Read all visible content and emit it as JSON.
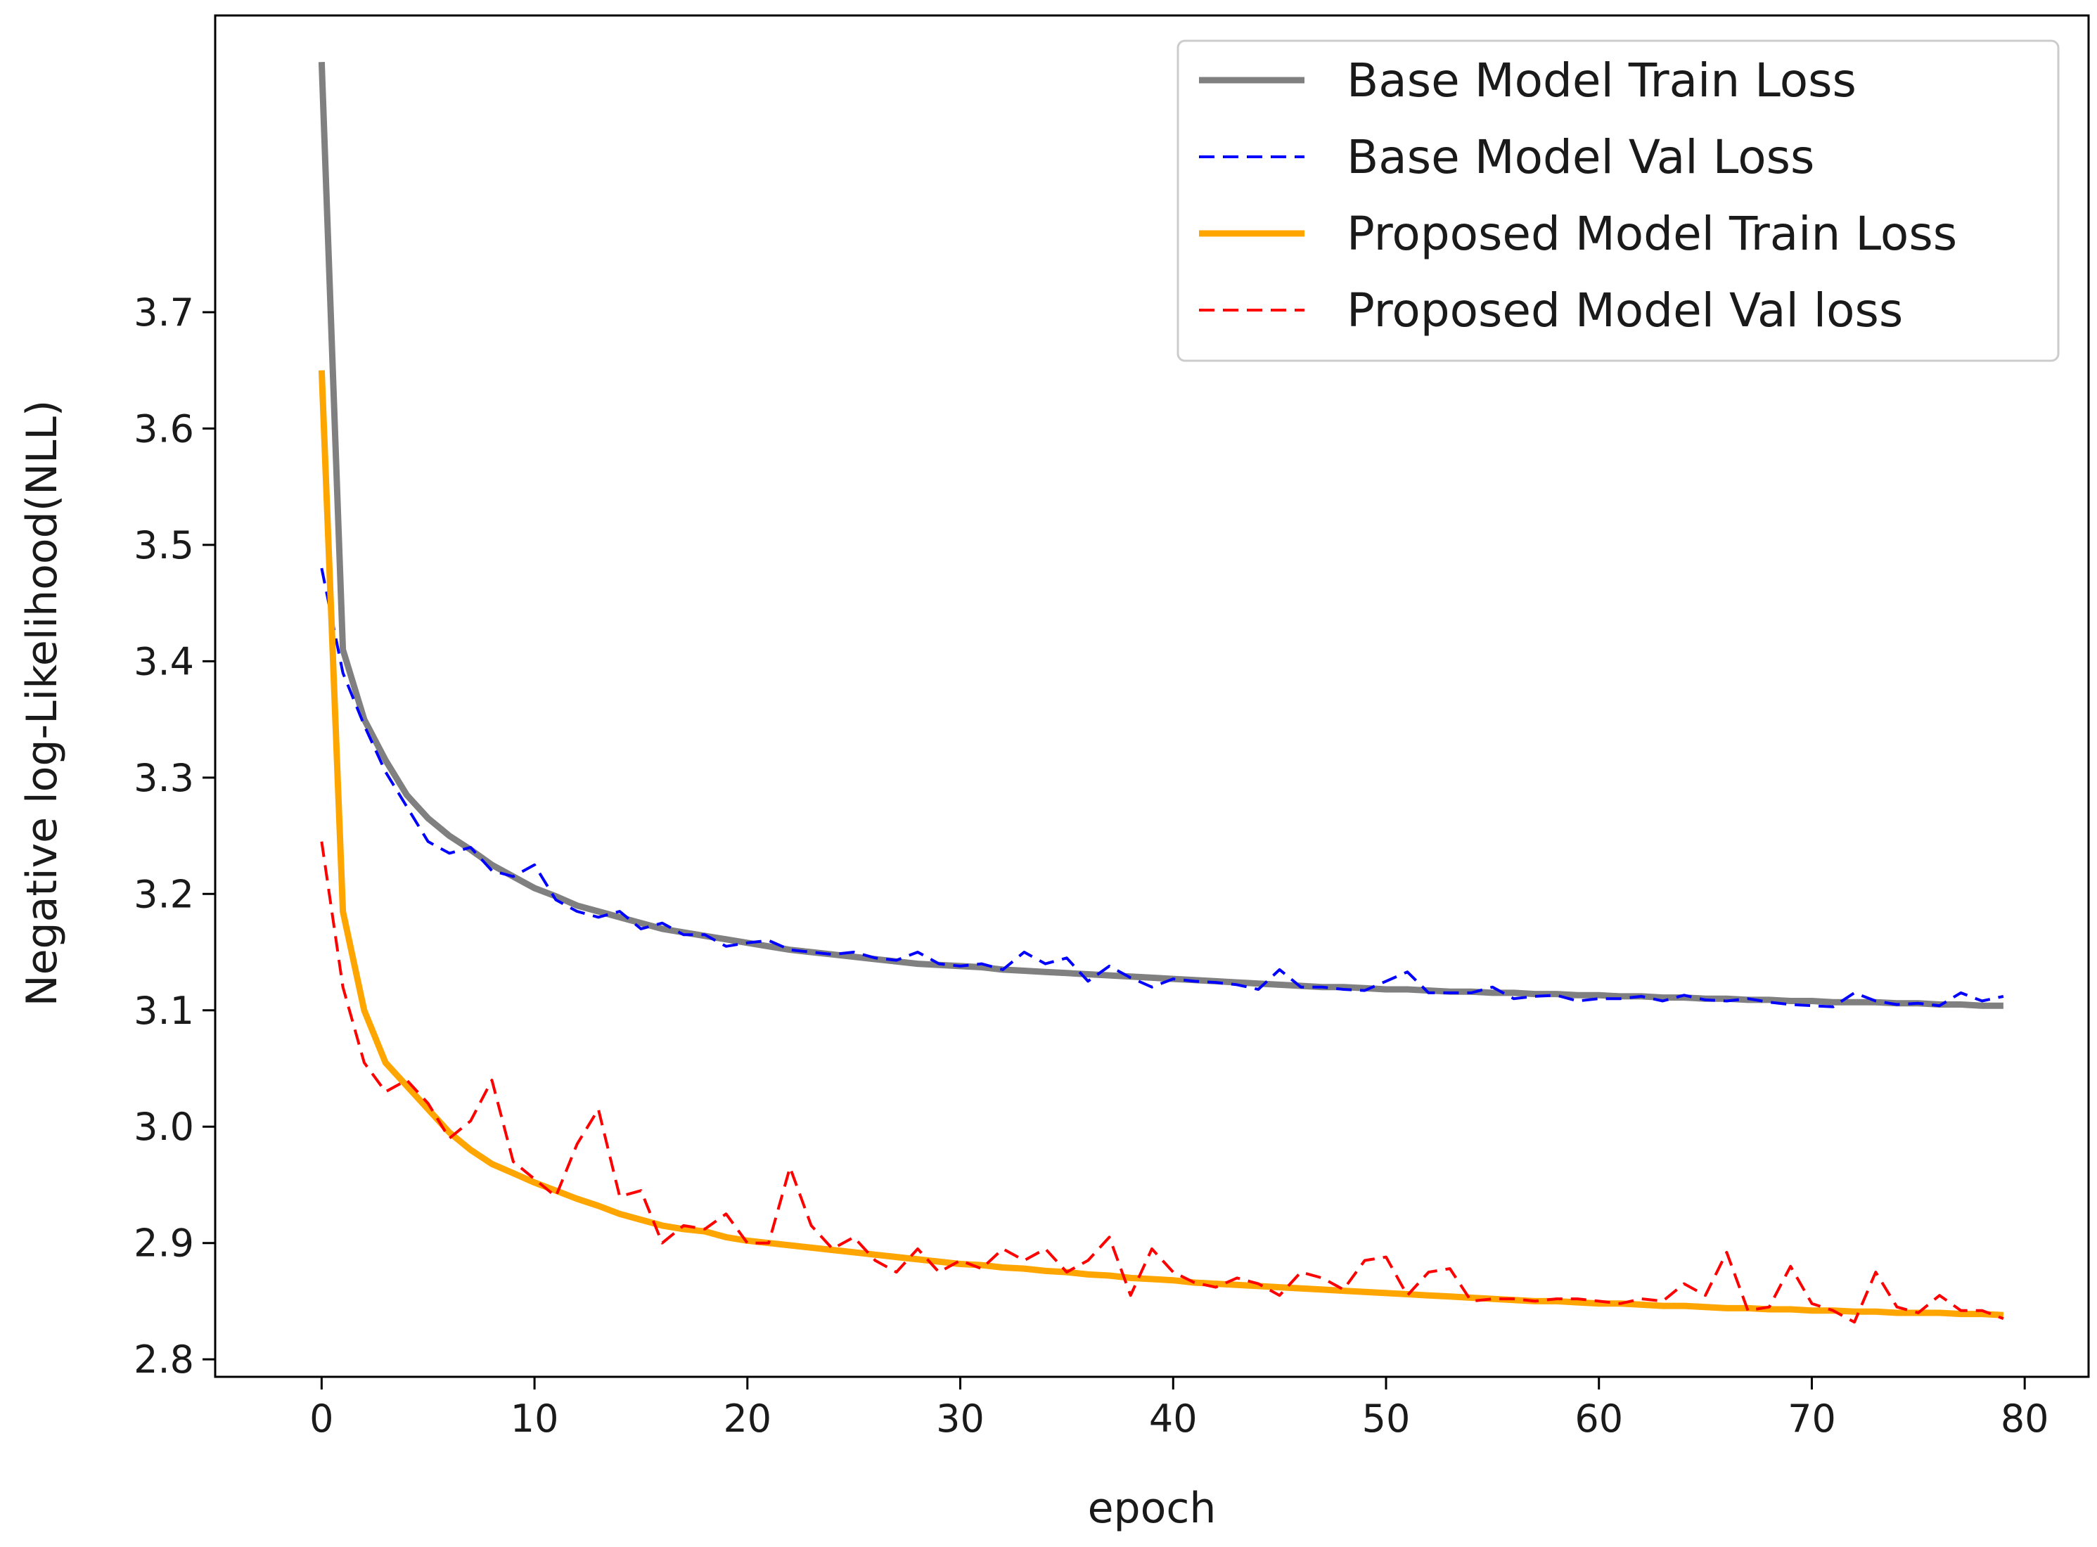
{
  "chart_data": {
    "type": "line",
    "title": "",
    "xlabel": "epoch",
    "ylabel": "Negative log-Likelihood(NLL)",
    "xlim": [
      -5,
      83
    ],
    "ylim": [
      2.785,
      3.955
    ],
    "xticks": [
      0,
      10,
      20,
      30,
      40,
      50,
      60,
      70,
      80
    ],
    "yticks": [
      2.8,
      2.9,
      3.0,
      3.1,
      3.2,
      3.3,
      3.4,
      3.5,
      3.6,
      3.7
    ],
    "xtick_labels": [
      "0",
      "10",
      "20",
      "30",
      "40",
      "50",
      "60",
      "70",
      "80"
    ],
    "ytick_labels": [
      "2.8",
      "2.9",
      "3.0",
      "3.1",
      "3.2",
      "3.3",
      "3.4",
      "3.5",
      "3.6",
      "3.7"
    ],
    "grid": false,
    "legend_position": "top-right",
    "series": [
      {
        "name": "Base Model Train Loss",
        "color": "#808080",
        "style": "solid",
        "values": [
          3.915,
          3.41,
          3.35,
          3.315,
          3.285,
          3.265,
          3.25,
          3.238,
          3.225,
          3.215,
          3.205,
          3.198,
          3.19,
          3.185,
          3.18,
          3.175,
          3.17,
          3.167,
          3.164,
          3.161,
          3.158,
          3.155,
          3.152,
          3.15,
          3.148,
          3.146,
          3.144,
          3.142,
          3.14,
          3.139,
          3.138,
          3.137,
          3.135,
          3.134,
          3.133,
          3.132,
          3.131,
          3.13,
          3.129,
          3.128,
          3.127,
          3.126,
          3.125,
          3.124,
          3.123,
          3.122,
          3.121,
          3.12,
          3.12,
          3.119,
          3.118,
          3.118,
          3.117,
          3.116,
          3.116,
          3.115,
          3.115,
          3.114,
          3.114,
          3.113,
          3.113,
          3.112,
          3.112,
          3.111,
          3.111,
          3.11,
          3.11,
          3.109,
          3.109,
          3.108,
          3.108,
          3.107,
          3.107,
          3.107,
          3.106,
          3.106,
          3.105,
          3.105,
          3.104,
          3.104
        ]
      },
      {
        "name": "Base Model Val Loss",
        "color": "#0000ff",
        "style": "dashed",
        "values": [
          3.48,
          3.39,
          3.345,
          3.305,
          3.275,
          3.245,
          3.235,
          3.24,
          3.22,
          3.215,
          3.225,
          3.195,
          3.185,
          3.18,
          3.185,
          3.17,
          3.175,
          3.165,
          3.165,
          3.155,
          3.158,
          3.16,
          3.152,
          3.15,
          3.148,
          3.15,
          3.145,
          3.143,
          3.15,
          3.14,
          3.138,
          3.14,
          3.135,
          3.15,
          3.14,
          3.145,
          3.125,
          3.138,
          3.128,
          3.12,
          3.127,
          3.125,
          3.124,
          3.122,
          3.118,
          3.135,
          3.12,
          3.12,
          3.118,
          3.117,
          3.125,
          3.133,
          3.115,
          3.115,
          3.115,
          3.12,
          3.11,
          3.112,
          3.113,
          3.108,
          3.11,
          3.11,
          3.112,
          3.108,
          3.113,
          3.109,
          3.108,
          3.11,
          3.107,
          3.105,
          3.104,
          3.103,
          3.115,
          3.108,
          3.105,
          3.106,
          3.104,
          3.115,
          3.108,
          3.112
        ]
      },
      {
        "name": "Proposed Model Train Loss",
        "color": "#ffa500",
        "style": "solid",
        "values": [
          3.65,
          3.185,
          3.1,
          3.055,
          3.035,
          3.015,
          2.995,
          2.98,
          2.968,
          2.96,
          2.952,
          2.945,
          2.938,
          2.932,
          2.925,
          2.92,
          2.915,
          2.912,
          2.91,
          2.905,
          2.902,
          2.9,
          2.898,
          2.896,
          2.894,
          2.892,
          2.89,
          2.888,
          2.886,
          2.884,
          2.882,
          2.881,
          2.879,
          2.878,
          2.876,
          2.875,
          2.873,
          2.872,
          2.87,
          2.869,
          2.868,
          2.866,
          2.865,
          2.864,
          2.863,
          2.862,
          2.861,
          2.86,
          2.859,
          2.858,
          2.857,
          2.856,
          2.855,
          2.854,
          2.853,
          2.852,
          2.851,
          2.85,
          2.85,
          2.849,
          2.848,
          2.848,
          2.847,
          2.846,
          2.846,
          2.845,
          2.844,
          2.844,
          2.843,
          2.843,
          2.842,
          2.842,
          2.841,
          2.841,
          2.84,
          2.84,
          2.84,
          2.839,
          2.839,
          2.838
        ]
      },
      {
        "name": "Proposed Model Val loss",
        "color": "#ff0000",
        "style": "dashed",
        "values": [
          3.245,
          3.12,
          3.055,
          3.03,
          3.04,
          3.02,
          2.99,
          3.005,
          3.04,
          2.97,
          2.955,
          2.94,
          2.985,
          3.015,
          2.94,
          2.945,
          2.9,
          2.915,
          2.912,
          2.925,
          2.9,
          2.9,
          2.965,
          2.915,
          2.895,
          2.905,
          2.885,
          2.875,
          2.895,
          2.875,
          2.885,
          2.878,
          2.895,
          2.885,
          2.895,
          2.875,
          2.885,
          2.905,
          2.855,
          2.895,
          2.875,
          2.866,
          2.862,
          2.87,
          2.865,
          2.855,
          2.875,
          2.87,
          2.86,
          2.885,
          2.888,
          2.855,
          2.875,
          2.878,
          2.85,
          2.852,
          2.852,
          2.85,
          2.852,
          2.852,
          2.85,
          2.848,
          2.852,
          2.85,
          2.865,
          2.855,
          2.892,
          2.842,
          2.845,
          2.88,
          2.848,
          2.842,
          2.832,
          2.875,
          2.845,
          2.84,
          2.855,
          2.842,
          2.842,
          2.835
        ]
      }
    ]
  }
}
